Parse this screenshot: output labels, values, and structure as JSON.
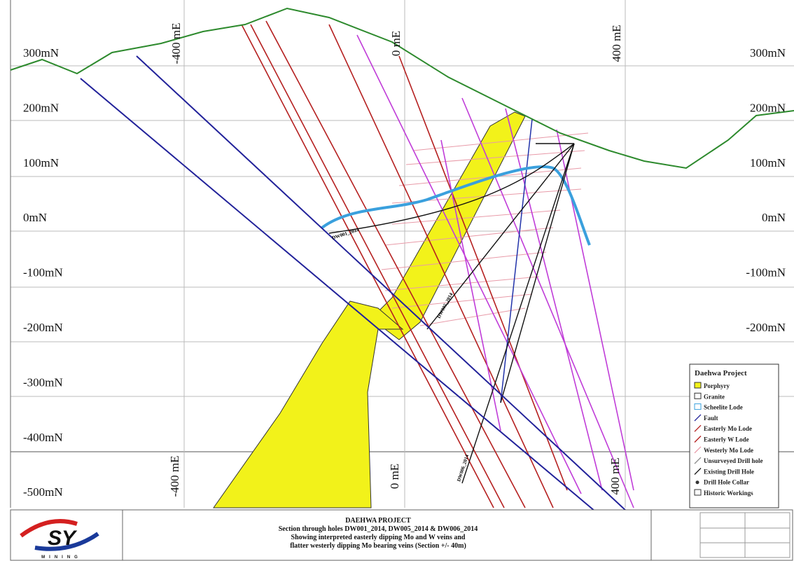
{
  "section": {
    "northing_labels_left": [
      "300mN",
      "200mN",
      "100mN",
      "0mN",
      "-100mN",
      "-200mN",
      "-300mN",
      "-400mN",
      "-500mN"
    ],
    "northing_labels_right": [
      "300mN",
      "200mN",
      "100mN",
      "0mN",
      "-100mN",
      "-200mN"
    ],
    "easting_labels_top": [
      "-400 mE",
      "0 mE",
      "400 mE"
    ],
    "easting_labels_bottom": [
      "-400 mE",
      "0 mE",
      "400 mE"
    ],
    "drill_hole_labels": [
      "DW001_2014",
      "DW005_2014",
      "DW006_2014"
    ]
  },
  "legend": {
    "title": "Daehwa Project",
    "items": [
      "Porphyry",
      "Granite",
      "Scheelite Lode",
      "Fault",
      "Easterly Mo Lode",
      "Easterly W Lode",
      "Westerly Mo Lode",
      "Unsurveyed Drill hole",
      "Existing Drill Hole",
      "Drill Hole Collar",
      "Historic Workings"
    ]
  },
  "title_block": {
    "title": "DAEHWA PROJECT",
    "lines": [
      "Section through holes DW001_2014, DW005_2014 & DW006_2014",
      "Showing interpreted easterly dipping Mo and W veins and",
      "flatter westerly dipping Mo bearing veins (Section +/- 40m)"
    ]
  },
  "logo": {
    "text": "SY",
    "subtext": "MINING"
  }
}
